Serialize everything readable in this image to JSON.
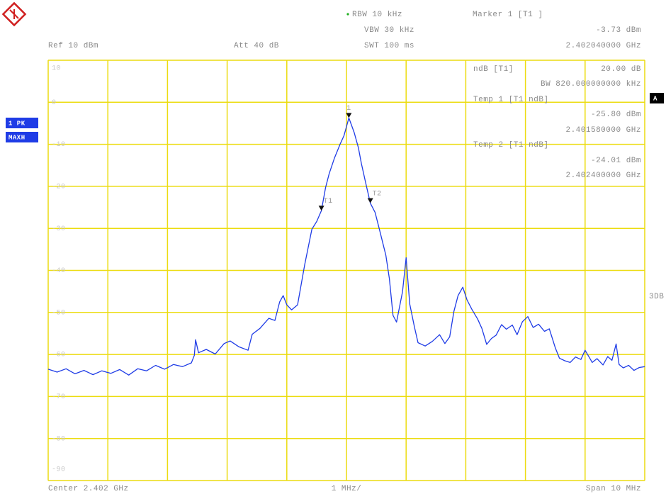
{
  "chart_data": {
    "type": "line",
    "settings": {
      "rbw": "RBW 10 kHz",
      "vbw": "VBW 30 kHz",
      "swt": "SWT 100 ms",
      "ref": "Ref 10 dBm",
      "att": "Att 40 dB"
    },
    "marker_readout": {
      "title": "Marker 1 [T1 ]",
      "level": "-3.73 dBm",
      "freq": "2.402040000 GHz"
    },
    "ndb_panel": {
      "label": "ndB [T1]",
      "value": "20.00 dB",
      "bw": "BW 820.000000000 kHz",
      "temp1": "Temp 1 [T1 ndB]",
      "temp1_level": "-25.80 dBm",
      "temp1_freq": "2.401580000 GHz",
      "temp2": "Temp 2 [T1 ndB]",
      "temp2_level": "-24.01 dBm",
      "temp2_freq": "2.402400000 GHz"
    },
    "side": {
      "trace": "1 PK",
      "detector": "MAXH",
      "screen": "A",
      "ndb_flag": "3DB"
    },
    "footer": {
      "center": "Center 2.402 GHz",
      "div": "1 MHz/",
      "span": "Span 10 MHz"
    },
    "xlim": [
      2.397,
      2.407
    ],
    "ylim": [
      -90,
      10
    ],
    "yticks": [
      10,
      0,
      -10,
      -20,
      -30,
      -40,
      -50,
      -60,
      -70,
      -80,
      -90
    ],
    "grid": true,
    "color": "#1f3ce6",
    "grid_color": "#ecdc10",
    "x": [
      2.397,
      2.39715,
      2.3973,
      2.39745,
      2.3976,
      2.39775,
      2.3979,
      2.39805,
      2.3982,
      2.39835,
      2.3985,
      2.39865,
      2.3988,
      2.39895,
      2.3991,
      2.39925,
      2.3994,
      2.39945,
      2.39947,
      2.39952,
      2.39965,
      2.3998,
      2.39995,
      2.40005,
      2.4002,
      2.40035,
      2.40042,
      2.40055,
      2.4007,
      2.4008,
      2.40088,
      2.40094,
      2.401,
      2.40108,
      2.40118,
      2.4013,
      2.40142,
      2.4015,
      2.40158,
      2.40165,
      2.40171,
      2.4018,
      2.40189,
      2.40196,
      2.40204,
      2.40213,
      2.4022,
      2.40225,
      2.40232,
      2.4024,
      2.40248,
      2.40255,
      2.40266,
      2.40272,
      2.40278,
      2.40284,
      2.40294,
      2.403,
      2.40306,
      2.40314,
      2.4032,
      2.40332,
      2.40344,
      2.40356,
      2.40365,
      2.40373,
      2.4038,
      2.40387,
      2.40395,
      2.40402,
      2.4041,
      2.4042,
      2.40427,
      2.40435,
      2.40443,
      2.40451,
      2.4046,
      2.40468,
      2.40478,
      2.40486,
      2.40495,
      2.40504,
      2.40513,
      2.40522,
      2.40532,
      2.4054,
      2.4055,
      2.40557,
      2.40566,
      2.40575,
      2.40584,
      2.40593,
      2.406,
      2.40605,
      2.40612,
      2.4062,
      2.4063,
      2.40638,
      2.40645,
      2.40652,
      2.40657,
      2.40664,
      2.40673,
      2.40682,
      2.40691,
      2.407
    ],
    "values": [
      -63.5,
      -64.2,
      -63.4,
      -64.6,
      -63.8,
      -64.8,
      -63.9,
      -64.5,
      -63.6,
      -64.9,
      -63.4,
      -63.9,
      -62.6,
      -63.5,
      -62.4,
      -62.9,
      -62.0,
      -60.2,
      -56.5,
      -59.6,
      -58.8,
      -59.9,
      -57.4,
      -56.8,
      -58.2,
      -59.0,
      -55.2,
      -53.8,
      -51.4,
      -51.9,
      -47.5,
      -46.0,
      -48.2,
      -49.4,
      -48.2,
      -38.6,
      -30.2,
      -28.4,
      -25.8,
      -20.3,
      -17.0,
      -13.2,
      -10.1,
      -7.9,
      -3.73,
      -7.2,
      -10.8,
      -14.6,
      -19.0,
      -24.01,
      -26.2,
      -30.1,
      -36.4,
      -42.0,
      -50.7,
      -52.3,
      -45.1,
      -37.0,
      -48.0,
      -53.5,
      -57.2,
      -58.0,
      -56.9,
      -55.3,
      -57.4,
      -55.8,
      -49.8,
      -46.0,
      -44.0,
      -47.0,
      -49.2,
      -51.6,
      -53.8,
      -57.6,
      -56.2,
      -55.4,
      -52.9,
      -54.0,
      -53.0,
      -55.3,
      -52.2,
      -51.0,
      -53.6,
      -52.8,
      -54.5,
      -53.9,
      -58.4,
      -60.9,
      -61.5,
      -61.9,
      -60.6,
      -61.2,
      -59.0,
      -60.2,
      -61.9,
      -61.0,
      -62.5,
      -60.5,
      -61.4,
      -57.5,
      -62.4,
      -63.2,
      -62.6,
      -63.8,
      -63.1,
      -62.9
    ],
    "markers": [
      {
        "label": "1",
        "x": 2.40204,
        "y": -3.73
      },
      {
        "label": "T1",
        "x": 2.40158,
        "y": -25.8
      },
      {
        "label": "T2",
        "x": 2.4024,
        "y": -24.01
      }
    ]
  }
}
